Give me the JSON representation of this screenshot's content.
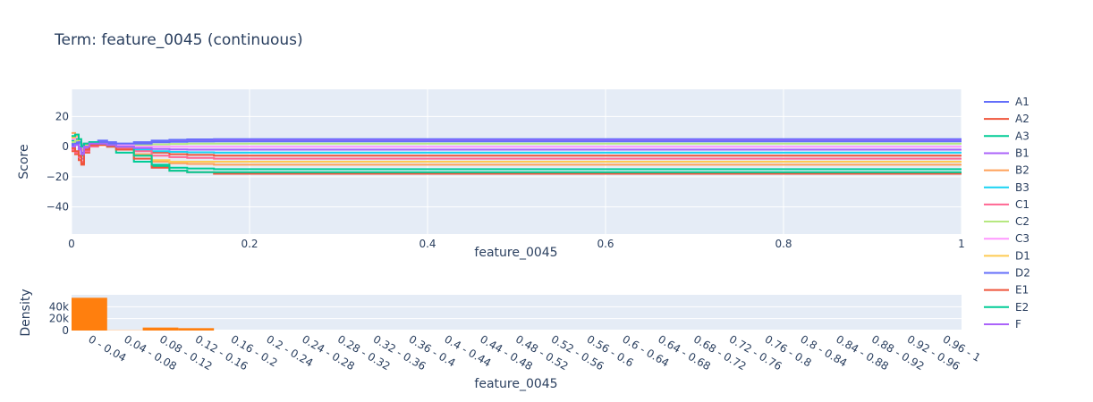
{
  "chart_data": [
    {
      "type": "line",
      "title": "Term: feature_0045 (continuous)",
      "xlabel": "feature_0045",
      "ylabel": "Score",
      "xlim": [
        0,
        1
      ],
      "ylim": [
        -58,
        38
      ],
      "x_ticks": [
        "0",
        "0.2",
        "0.4",
        "0.6",
        "0.8",
        "1"
      ],
      "y_ticks": [
        "20",
        "0",
        "−20",
        "−40"
      ],
      "grid": true,
      "legend": "right",
      "series": [
        {
          "name": "A1",
          "color": "#636efa",
          "x": [
            0,
            0.004,
            0.008,
            0.011,
            0.014,
            0.02,
            0.03,
            0.04,
            0.05,
            0.07,
            0.09,
            0.11,
            0.13,
            0.16,
            1
          ],
          "y": [
            2,
            3,
            0,
            -4,
            1,
            3,
            4,
            3,
            2,
            3,
            4,
            4.5,
            4.8,
            5,
            5
          ]
        },
        {
          "name": "A2",
          "color": "#ef553b",
          "x": [
            0,
            0.004,
            0.008,
            0.011,
            0.014,
            0.02,
            0.03,
            0.04,
            0.05,
            0.07,
            0.09,
            0.11,
            0.13,
            0.16,
            1
          ],
          "y": [
            -3,
            -5,
            -9,
            -12,
            -4,
            1,
            2,
            1,
            0,
            -2,
            -4,
            -5,
            -5.5,
            -6,
            -6
          ]
        },
        {
          "name": "A3",
          "color": "#00cc96",
          "x": [
            0,
            0.004,
            0.008,
            0.011,
            0.014,
            0.02,
            0.03,
            0.04,
            0.05,
            0.07,
            0.09,
            0.11,
            0.13,
            0.16,
            1
          ],
          "y": [
            4,
            5,
            3,
            -6,
            0,
            2,
            1,
            0,
            -4,
            -10,
            -13,
            -14,
            -14.5,
            -15,
            -15
          ]
        },
        {
          "name": "B1",
          "color": "#ab63fa",
          "x": [
            0,
            0.004,
            0.008,
            0.011,
            0.014,
            0.02,
            0.03,
            0.04,
            0.05,
            0.07,
            0.09,
            0.11,
            0.13,
            0.16,
            1
          ],
          "y": [
            1,
            2,
            -2,
            -8,
            -1,
            2,
            3,
            2,
            1,
            2,
            3,
            3.5,
            3.8,
            4,
            4
          ]
        },
        {
          "name": "B2",
          "color": "#ffa15a",
          "x": [
            0,
            0.004,
            0.008,
            0.011,
            0.014,
            0.02,
            0.03,
            0.04,
            0.05,
            0.07,
            0.09,
            0.11,
            0.13,
            0.16,
            1
          ],
          "y": [
            9,
            8,
            4,
            0,
            2,
            3,
            2,
            1,
            0,
            -5,
            -10,
            -11,
            -11.5,
            -12,
            -12
          ]
        },
        {
          "name": "B3",
          "color": "#19d3f3",
          "x": [
            0,
            0.004,
            0.008,
            0.011,
            0.014,
            0.02,
            0.03,
            0.04,
            0.05,
            0.07,
            0.09,
            0.11,
            0.13,
            0.16,
            1
          ],
          "y": [
            0,
            1,
            2,
            0,
            1,
            1,
            1,
            0,
            -1,
            -2,
            -3,
            -3.5,
            -3.8,
            -4,
            -4
          ]
        },
        {
          "name": "C1",
          "color": "#ff6692",
          "x": [
            0,
            0.004,
            0.008,
            0.011,
            0.014,
            0.02,
            0.03,
            0.04,
            0.05,
            0.07,
            0.09,
            0.11,
            0.13,
            0.16,
            1
          ],
          "y": [
            -2,
            -4,
            -7,
            -10,
            -3,
            0,
            1,
            0,
            -1,
            -3,
            -6,
            -7,
            -7.5,
            -8,
            -8
          ]
        },
        {
          "name": "C2",
          "color": "#b6e880",
          "x": [
            0,
            0.004,
            0.008,
            0.011,
            0.014,
            0.02,
            0.03,
            0.04,
            0.05,
            0.07,
            0.09,
            0.11,
            0.13,
            0.16,
            1
          ],
          "y": [
            3,
            4,
            5,
            2,
            2,
            2,
            2,
            1,
            1,
            1,
            1.5,
            1.8,
            2,
            2,
            2
          ]
        },
        {
          "name": "C3",
          "color": "#ff97ff",
          "x": [
            0,
            0.004,
            0.008,
            0.011,
            0.014,
            0.02,
            0.03,
            0.04,
            0.05,
            0.07,
            0.09,
            0.11,
            0.13,
            0.16,
            1
          ],
          "y": [
            5,
            6,
            4,
            1,
            2,
            3,
            2,
            1,
            1,
            0,
            0,
            0,
            0,
            0,
            0
          ]
        },
        {
          "name": "D1",
          "color": "#fecb52",
          "x": [
            0,
            0.004,
            0.008,
            0.011,
            0.014,
            0.02,
            0.03,
            0.04,
            0.05,
            0.07,
            0.09,
            0.11,
            0.13,
            0.16,
            1
          ],
          "y": [
            6,
            7,
            3,
            -2,
            1,
            2,
            1,
            0,
            -2,
            -6,
            -9,
            -10,
            -10,
            -10,
            -10
          ]
        },
        {
          "name": "D2",
          "color": "#636efa",
          "x": [
            0,
            0.004,
            0.008,
            0.011,
            0.014,
            0.02,
            0.03,
            0.04,
            0.05,
            0.07,
            0.09,
            0.11,
            0.13,
            0.16,
            1
          ],
          "y": [
            1,
            2,
            3,
            1,
            2,
            3,
            3,
            2,
            2,
            2,
            3,
            3.2,
            3.4,
            3.5,
            3.5
          ]
        },
        {
          "name": "E1",
          "color": "#ef553b",
          "x": [
            0,
            0.004,
            0.008,
            0.011,
            0.014,
            0.02,
            0.03,
            0.04,
            0.05,
            0.07,
            0.09,
            0.11,
            0.13,
            0.16,
            1
          ],
          "y": [
            -1,
            -3,
            -6,
            -11,
            -2,
            1,
            1,
            0,
            -2,
            -8,
            -14,
            -16,
            -17,
            -18,
            -18
          ]
        },
        {
          "name": "E2",
          "color": "#00cc96",
          "x": [
            0,
            0.004,
            0.008,
            0.011,
            0.014,
            0.02,
            0.03,
            0.04,
            0.05,
            0.07,
            0.09,
            0.11,
            0.13,
            0.16,
            1
          ],
          "y": [
            7,
            8,
            5,
            0,
            2,
            3,
            2,
            1,
            0,
            -6,
            -12,
            -16,
            -17,
            -17,
            -17
          ]
        },
        {
          "name": "F",
          "color": "#ab63fa",
          "x": [
            0,
            0.004,
            0.008,
            0.011,
            0.014,
            0.02,
            0.03,
            0.04,
            0.05,
            0.07,
            0.09,
            0.11,
            0.13,
            0.16,
            1
          ],
          "y": [
            0,
            1,
            -1,
            -5,
            0,
            2,
            2,
            1,
            0,
            -1,
            -1.5,
            -1.8,
            -2,
            -2,
            -2
          ]
        }
      ]
    },
    {
      "type": "bar",
      "xlabel": "feature_0045",
      "ylabel": "Density",
      "ylim": [
        0,
        60000
      ],
      "y_ticks": [
        "40k",
        "20k",
        "0"
      ],
      "grid": true,
      "color": "#ff7f0e",
      "categories": [
        "0 - 0.04",
        "0.04 - 0.08",
        "0.08 - 0.12",
        "0.12 - 0.16",
        "0.16 - 0.2",
        "0.2 - 0.24",
        "0.24 - 0.28",
        "0.28 - 0.32",
        "0.32 - 0.36",
        "0.36 - 0.4",
        "0.4 - 0.44",
        "0.44 - 0.48",
        "0.48 - 0.52",
        "0.52 - 0.56",
        "0.56 - 0.6",
        "0.6 - 0.64",
        "0.64 - 0.68",
        "0.68 - 0.72",
        "0.72 - 0.76",
        "0.76 - 0.8",
        "0.8 - 0.84",
        "0.84 - 0.88",
        "0.88 - 0.92",
        "0.92 - 0.96",
        "0.96 - 1"
      ],
      "values": [
        55000,
        400,
        5000,
        4000,
        0,
        0,
        0,
        0,
        0,
        0,
        0,
        0,
        0,
        0,
        0,
        0,
        0,
        0,
        0,
        0,
        0,
        0,
        0,
        0,
        0
      ]
    }
  ]
}
